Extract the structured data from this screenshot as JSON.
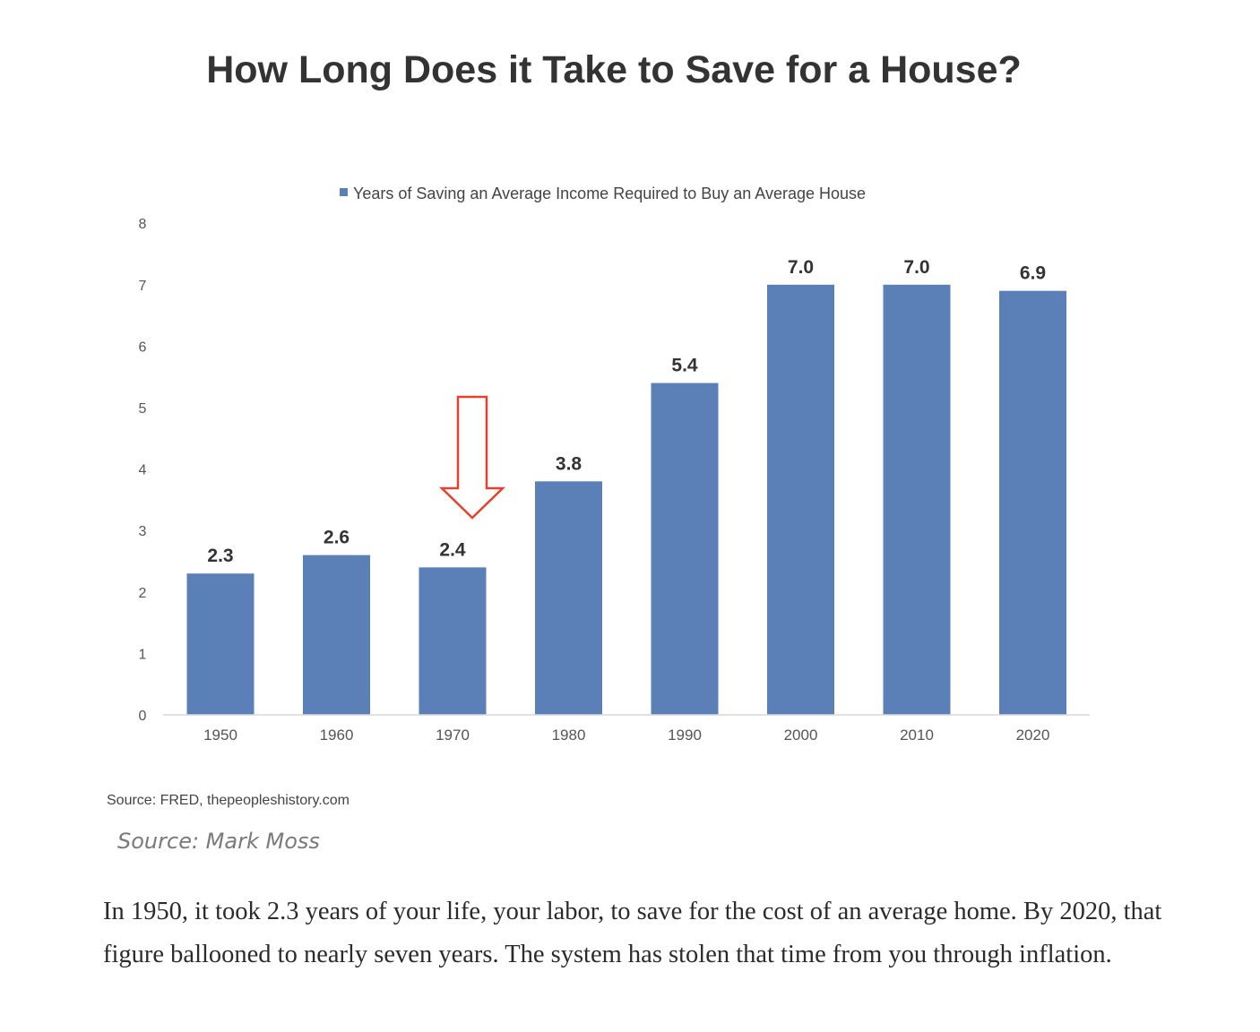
{
  "chart_data": {
    "type": "bar",
    "title": "How Long Does it Take to Save for a House?",
    "categories": [
      "1950",
      "1960",
      "1970",
      "1980",
      "1990",
      "2000",
      "2010",
      "2020"
    ],
    "series": [
      {
        "name": "Years of Saving an Average Income Required to Buy an Average House",
        "values": [
          2.3,
          2.6,
          2.4,
          3.8,
          5.4,
          7.0,
          7.0,
          6.9
        ]
      }
    ],
    "data_labels": [
      "2.3",
      "2.6",
      "2.4",
      "3.8",
      "5.4",
      "7.0",
      "7.0",
      "6.9"
    ],
    "ylim": [
      0,
      8
    ],
    "yticks": [
      "0",
      "1",
      "2",
      "3",
      "4",
      "5",
      "6",
      "7",
      "8"
    ],
    "xlabel": "",
    "ylabel": "",
    "grid": false,
    "legend_position": "top",
    "bar_color": "#5b7fb7",
    "annotation": {
      "type": "arrow-down",
      "category": "1970",
      "color": "#e8402a"
    }
  },
  "source_note": "Source: FRED, thepeopleshistory.com",
  "caption": "Source: Mark Moss",
  "paragraph": "In 1950, it took 2.3 years of your life, your labor, to save for the cost of an average home. By 2020, that figure ballooned to nearly seven years. The system has stolen that time from you through inflation."
}
